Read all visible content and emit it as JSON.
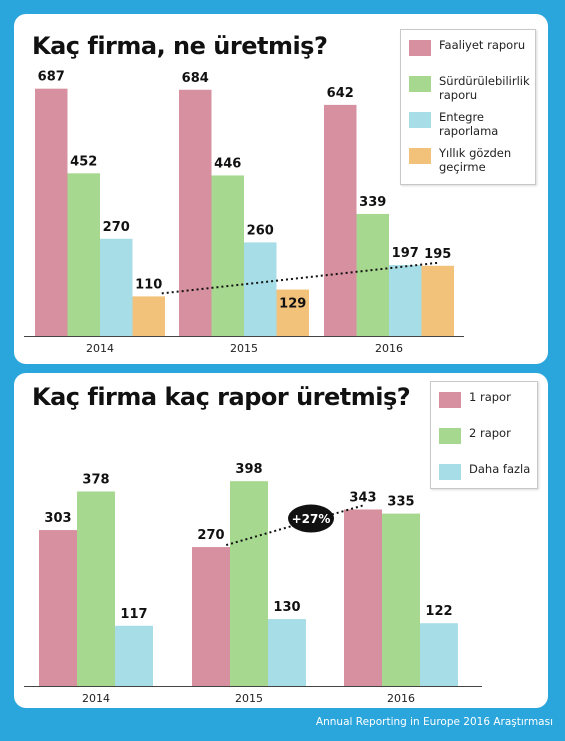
{
  "colors": {
    "background": "#2aa6dc",
    "pink": "#d6909f",
    "green": "#a7d890",
    "cyan": "#a6dde6",
    "orange": "#f2c17a"
  },
  "source": "Annual Reporting in Europe 2016 Araştırması",
  "chart_data": [
    {
      "type": "bar",
      "title": "Kaç firma, ne üretmiş?",
      "categories": [
        "2014",
        "2015",
        "2016"
      ],
      "series": [
        {
          "name": "Faaliyet raporu",
          "values": [
            687,
            684,
            642
          ],
          "color": "#d6909f"
        },
        {
          "name": "Sürdürülebilirlik raporu",
          "values": [
            452,
            446,
            339
          ],
          "color": "#a7d890"
        },
        {
          "name": "Entegre raporlama",
          "values": [
            270,
            260,
            197
          ],
          "color": "#a6dde6"
        },
        {
          "name": "Yıllık gözden geçirme",
          "values": [
            110,
            129,
            195
          ],
          "color": "#f2c17a"
        }
      ],
      "legend": "top-right",
      "grid": false,
      "ylim": [
        0,
        700
      ],
      "trend_line": {
        "series": "Yıllık gözden geçirme",
        "from": "2014",
        "to": "2016"
      }
    },
    {
      "type": "bar",
      "title": "Kaç firma kaç rapor üretmiş?",
      "categories": [
        "2014",
        "2015",
        "2016"
      ],
      "series": [
        {
          "name": "1 rapor",
          "values": [
            303,
            270,
            343
          ],
          "color": "#d6909f"
        },
        {
          "name": "2 rapor",
          "values": [
            378,
            398,
            335
          ],
          "color": "#a7d890"
        },
        {
          "name": "Daha fazla",
          "values": [
            117,
            130,
            122
          ],
          "color": "#a6dde6"
        }
      ],
      "legend": "top-right",
      "grid": false,
      "ylim": [
        0,
        410
      ],
      "trend_line": {
        "series": "1 rapor",
        "from": "2015",
        "to": "2016",
        "label": "+27%"
      }
    }
  ]
}
